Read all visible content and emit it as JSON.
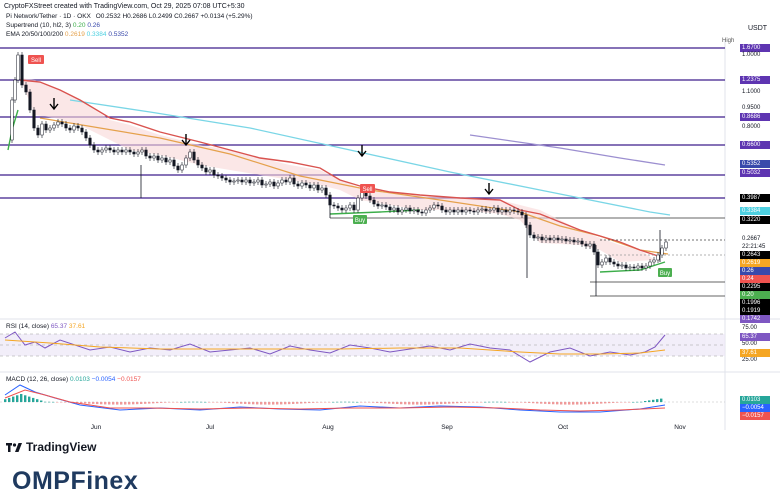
{
  "header": {
    "attribution": "CryptoFXStreet created with TradingView.com, Oct 29, 2025 07:08 UTC+5:30",
    "symbol_line": "Pi Network/Tether · 1D · OKX",
    "ohlc": "O0.2532 H0.2686 L0.2499 C0.2667 +0.0134 (+5.29%)",
    "supertrend_label": "Supertrend (10, hl2, 3)",
    "supertrend_vals": [
      "0.20",
      "0.26"
    ],
    "ema_label": "EMA 20/50/100/200",
    "ema_vals": [
      "0.2619",
      "0.3384",
      "0.5352"
    ],
    "currency": "USDT"
  },
  "colors": {
    "ema20": "#e5a14c",
    "ema50": "#7ad6e6",
    "ema100": "#9c8fd0",
    "ema200": "#6d4fb7",
    "supertrend_down": "#d9534f",
    "supertrend_up": "#3cae4a",
    "level_line": "#3d1f8c",
    "sell": "#ef5350",
    "buy": "#4caf50"
  },
  "price_axis": {
    "high_label": "High",
    "ticks": [
      "1.0000",
      "0.9500",
      "0.8000",
      "1.1000"
    ],
    "badges": [
      {
        "text": "1.6700",
        "bg": "#5e35b1",
        "fg": "#ffffff"
      },
      {
        "text": "1.2375",
        "bg": "#5e35b1",
        "fg": "#ffffff"
      },
      {
        "text": "0.8686",
        "bg": "#5e35b1",
        "fg": "#ffffff"
      },
      {
        "text": "0.6600",
        "bg": "#5e35b1",
        "fg": "#ffffff"
      },
      {
        "text": "0.5352",
        "bg": "#3949ab",
        "fg": "#ffffff"
      },
      {
        "text": "0.5032",
        "bg": "#5e35b1",
        "fg": "#ffffff"
      },
      {
        "text": "0.3987",
        "bg": "#000000",
        "fg": "#ffffff"
      },
      {
        "text": "0.3384",
        "bg": "#4dd0e1",
        "fg": "#ffffff"
      },
      {
        "text": "0.3220",
        "bg": "#000000",
        "fg": "#ffffff"
      },
      {
        "text": "0.2667",
        "bg": "#ffffff",
        "fg": "#131722"
      },
      {
        "text": "22:21:45",
        "bg": "#ffffff",
        "fg": "#131722"
      },
      {
        "text": "0.2643",
        "bg": "#000000",
        "fg": "#ffffff"
      },
      {
        "text": "0.2619",
        "bg": "#f5a623",
        "fg": "#ffffff"
      },
      {
        "text": "0.26",
        "bg": "#3949ab",
        "fg": "#ffffff"
      },
      {
        "text": "0.24",
        "bg": "#ef5350",
        "fg": "#ffffff"
      },
      {
        "text": "0.2295",
        "bg": "#000000",
        "fg": "#ffffff"
      },
      {
        "text": "0.20",
        "bg": "#4caf50",
        "fg": "#ffffff"
      },
      {
        "text": "0.1996",
        "bg": "#000000",
        "fg": "#ffffff"
      },
      {
        "text": "0.1919",
        "bg": "#000000",
        "fg": "#ffffff"
      },
      {
        "text": "0.1742",
        "bg": "#7e57c2",
        "fg": "#ffffff"
      }
    ]
  },
  "rsi": {
    "label": "RSI (14, close)",
    "value": "65.37",
    "ma_value": "37.61",
    "ticks": [
      "75.00",
      "50.00",
      "25.00"
    ],
    "badges": [
      {
        "text": "65.37",
        "bg": "#7e57c2"
      },
      {
        "text": "37.61",
        "bg": "#f5a623"
      }
    ]
  },
  "macd": {
    "label": "MACD (12, 26, close)",
    "values": [
      "0.0103",
      "−0.0054",
      "−0.0157"
    ],
    "badges": [
      {
        "text": "0.0103",
        "bg": "#26a69a"
      },
      {
        "text": "−0.0054",
        "bg": "#2962ff"
      },
      {
        "text": "−0.0157",
        "bg": "#ef5350"
      }
    ]
  },
  "x_axis": {
    "labels": [
      "Jun",
      "Jul",
      "Aug",
      "Sep",
      "Oct",
      "Nov"
    ]
  },
  "signals": {
    "sell": "Sell",
    "buy": "Buy"
  },
  "branding": {
    "tradingview": "TradingView",
    "watermark": "OMPFinex"
  },
  "chart_data": {
    "type": "candlestick",
    "title": "Pi Network/Tether · 1D · OKX",
    "x_range": [
      "2025-05-12",
      "2025-10-29"
    ],
    "y_scale": "log",
    "horizontal_levels": [
      1.67,
      1.2375,
      0.8686,
      0.66,
      0.5032,
      0.3987,
      0.322,
      0.2295,
      0.1996
    ],
    "close_path": [
      {
        "date": "2025-05-12",
        "close": 0.75
      },
      {
        "date": "2025-05-13",
        "close": 1.67
      },
      {
        "date": "2025-05-14",
        "close": 1.3
      },
      {
        "date": "2025-05-18",
        "close": 0.82
      },
      {
        "date": "2025-05-25",
        "close": 0.8
      },
      {
        "date": "2025-06-05",
        "close": 0.62
      },
      {
        "date": "2025-06-20",
        "close": 0.58
      },
      {
        "date": "2025-06-25",
        "close": 0.66
      },
      {
        "date": "2025-07-05",
        "close": 0.5
      },
      {
        "date": "2025-07-20",
        "close": 0.47
      },
      {
        "date": "2025-08-01",
        "close": 0.36
      },
      {
        "date": "2025-08-06",
        "close": 0.43
      },
      {
        "date": "2025-08-20",
        "close": 0.36
      },
      {
        "date": "2025-09-01",
        "close": 0.36
      },
      {
        "date": "2025-09-15",
        "close": 0.37
      },
      {
        "date": "2025-09-22",
        "close": 0.28
      },
      {
        "date": "2025-10-05",
        "close": 0.27
      },
      {
        "date": "2025-10-11",
        "close": 0.21
      },
      {
        "date": "2025-10-20",
        "close": 0.2
      },
      {
        "date": "2025-10-25",
        "close": 0.21
      },
      {
        "date": "2025-10-29",
        "close": 0.2667
      }
    ]
  }
}
